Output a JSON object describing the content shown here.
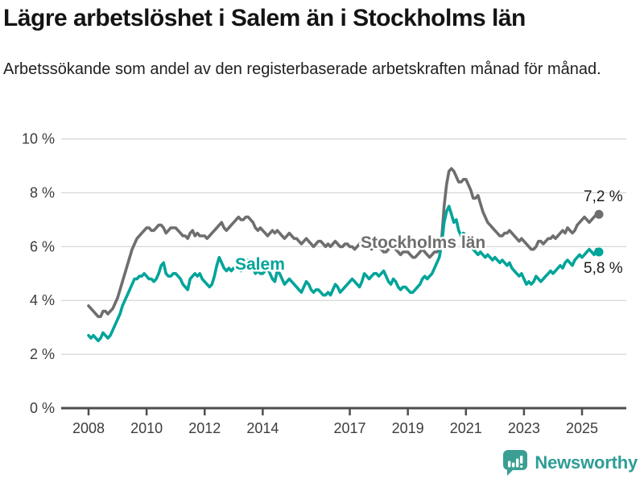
{
  "header": {
    "title": "Lägre arbetslöshet i Salem än i Stockholms län",
    "subtitle": "Arbetssökande som andel av den registerbaserade arbetskraften månad för månad."
  },
  "footer": {
    "brand": "Newsworthy",
    "brand_color": "#2d9d96",
    "logo_icon": "bar-chart-speech-bubble-icon"
  },
  "chart_data": {
    "type": "line",
    "title": "Lägre arbetslöshet i Salem än i Stockholms län",
    "subtitle": "Arbetssökande som andel av den registerbaserade arbetskraften månad för månad.",
    "xlabel": "",
    "ylabel": "",
    "unit": "%",
    "grid": "horizontal",
    "legend_position": "inline-labels",
    "x_start_year": 2008,
    "x_step_months": 1,
    "x_end_label": "Aug 2025",
    "x_ticks": [
      2008,
      2010,
      2012,
      2014,
      2017,
      2019,
      2021,
      2023,
      2025
    ],
    "y_ticks": [
      0,
      2,
      4,
      6,
      8,
      10
    ],
    "y_tick_suffix": " %",
    "ylim": [
      0,
      10
    ],
    "axis_color": "#4d4d4d",
    "grid_color": "#d6d6d6",
    "series": [
      {
        "name": "Stockholms län",
        "color": "#6e6e6e",
        "end_value": 7.2,
        "end_label": "7,2 %",
        "values": [
          3.8,
          3.7,
          3.6,
          3.5,
          3.4,
          3.4,
          3.6,
          3.6,
          3.5,
          3.6,
          3.7,
          3.9,
          4.1,
          4.4,
          4.7,
          5.0,
          5.3,
          5.6,
          5.9,
          6.1,
          6.3,
          6.4,
          6.5,
          6.6,
          6.7,
          6.7,
          6.6,
          6.6,
          6.7,
          6.8,
          6.8,
          6.7,
          6.5,
          6.6,
          6.7,
          6.7,
          6.7,
          6.6,
          6.5,
          6.4,
          6.4,
          6.3,
          6.5,
          6.6,
          6.4,
          6.5,
          6.4,
          6.4,
          6.4,
          6.3,
          6.4,
          6.5,
          6.6,
          6.7,
          6.8,
          6.9,
          6.7,
          6.6,
          6.7,
          6.8,
          6.9,
          7.0,
          7.1,
          7.0,
          7.0,
          7.1,
          7.1,
          7.0,
          6.9,
          6.7,
          6.6,
          6.7,
          6.6,
          6.5,
          6.4,
          6.5,
          6.6,
          6.5,
          6.6,
          6.5,
          6.4,
          6.3,
          6.4,
          6.5,
          6.4,
          6.3,
          6.3,
          6.2,
          6.1,
          6.2,
          6.3,
          6.2,
          6.1,
          6.0,
          6.1,
          6.2,
          6.2,
          6.1,
          6.0,
          6.1,
          6.0,
          6.1,
          6.2,
          6.1,
          6.0,
          6.0,
          6.1,
          6.1,
          6.0,
          6.0,
          5.9,
          6.0,
          6.1,
          6.1,
          6.2,
          6.1,
          6.0,
          5.9,
          6.0,
          6.0,
          6.0,
          5.9,
          5.8,
          5.8,
          5.9,
          6.0,
          6.0,
          5.9,
          5.8,
          5.7,
          5.8,
          5.8,
          5.8,
          5.7,
          5.6,
          5.6,
          5.7,
          5.8,
          5.9,
          5.8,
          5.7,
          5.6,
          5.7,
          5.8,
          5.8,
          5.9,
          6.3,
          7.5,
          8.3,
          8.8,
          8.9,
          8.8,
          8.6,
          8.4,
          8.4,
          8.5,
          8.5,
          8.3,
          8.1,
          7.8,
          7.8,
          7.9,
          7.6,
          7.3,
          7.1,
          6.9,
          6.8,
          6.7,
          6.6,
          6.5,
          6.4,
          6.4,
          6.5,
          6.5,
          6.6,
          6.5,
          6.4,
          6.3,
          6.2,
          6.3,
          6.2,
          6.1,
          6.0,
          5.9,
          5.9,
          6.0,
          6.2,
          6.2,
          6.1,
          6.2,
          6.3,
          6.3,
          6.4,
          6.3,
          6.4,
          6.5,
          6.6,
          6.5,
          6.7,
          6.6,
          6.5,
          6.6,
          6.8,
          6.9,
          7.0,
          7.1,
          7.0,
          6.9,
          7.0,
          7.1,
          7.2,
          7.2
        ]
      },
      {
        "name": "Salem",
        "color": "#00a49a",
        "end_value": 5.8,
        "end_label": "5,8 %",
        "values": [
          2.7,
          2.6,
          2.7,
          2.6,
          2.5,
          2.6,
          2.8,
          2.7,
          2.6,
          2.7,
          2.9,
          3.1,
          3.3,
          3.5,
          3.8,
          4.0,
          4.2,
          4.4,
          4.6,
          4.8,
          4.8,
          4.9,
          4.9,
          5.0,
          4.9,
          4.8,
          4.8,
          4.7,
          4.8,
          5.0,
          5.3,
          5.4,
          5.0,
          4.9,
          4.9,
          5.0,
          5.0,
          4.9,
          4.8,
          4.6,
          4.5,
          4.4,
          4.8,
          4.9,
          5.0,
          4.9,
          5.0,
          4.8,
          4.7,
          4.6,
          4.5,
          4.6,
          4.9,
          5.3,
          5.6,
          5.4,
          5.2,
          5.1,
          5.2,
          5.1,
          5.2,
          5.3,
          5.2,
          5.1,
          5.2,
          5.4,
          5.5,
          5.4,
          5.2,
          5.0,
          5.1,
          5.0,
          5.0,
          5.1,
          5.2,
          5.0,
          4.8,
          4.7,
          5.1,
          5.0,
          4.8,
          4.6,
          4.7,
          4.8,
          4.7,
          4.6,
          4.5,
          4.4,
          4.3,
          4.5,
          4.7,
          4.6,
          4.4,
          4.3,
          4.4,
          4.4,
          4.3,
          4.2,
          4.2,
          4.3,
          4.2,
          4.4,
          4.6,
          4.5,
          4.3,
          4.4,
          4.5,
          4.6,
          4.7,
          4.8,
          4.7,
          4.6,
          4.5,
          4.7,
          5.0,
          4.9,
          4.8,
          4.9,
          5.0,
          5.0,
          4.9,
          5.0,
          5.1,
          4.9,
          4.7,
          4.6,
          4.8,
          4.7,
          4.5,
          4.4,
          4.5,
          4.5,
          4.4,
          4.3,
          4.3,
          4.4,
          4.5,
          4.6,
          4.8,
          4.9,
          4.8,
          4.9,
          5.0,
          5.2,
          5.4,
          5.6,
          6.1,
          6.9,
          7.3,
          7.5,
          7.2,
          6.9,
          7.0,
          6.6,
          6.4,
          6.5,
          6.4,
          6.2,
          6.0,
          5.9,
          5.8,
          5.7,
          5.8,
          5.7,
          5.6,
          5.7,
          5.6,
          5.5,
          5.6,
          5.5,
          5.4,
          5.5,
          5.4,
          5.3,
          5.4,
          5.2,
          5.1,
          5.0,
          4.9,
          5.0,
          4.8,
          4.6,
          4.7,
          4.6,
          4.7,
          4.9,
          4.8,
          4.7,
          4.8,
          4.9,
          5.0,
          5.1,
          5.0,
          5.1,
          5.2,
          5.3,
          5.2,
          5.4,
          5.5,
          5.4,
          5.3,
          5.5,
          5.6,
          5.7,
          5.6,
          5.7,
          5.8,
          5.9,
          5.8,
          5.7,
          5.9,
          5.8
        ]
      }
    ]
  }
}
